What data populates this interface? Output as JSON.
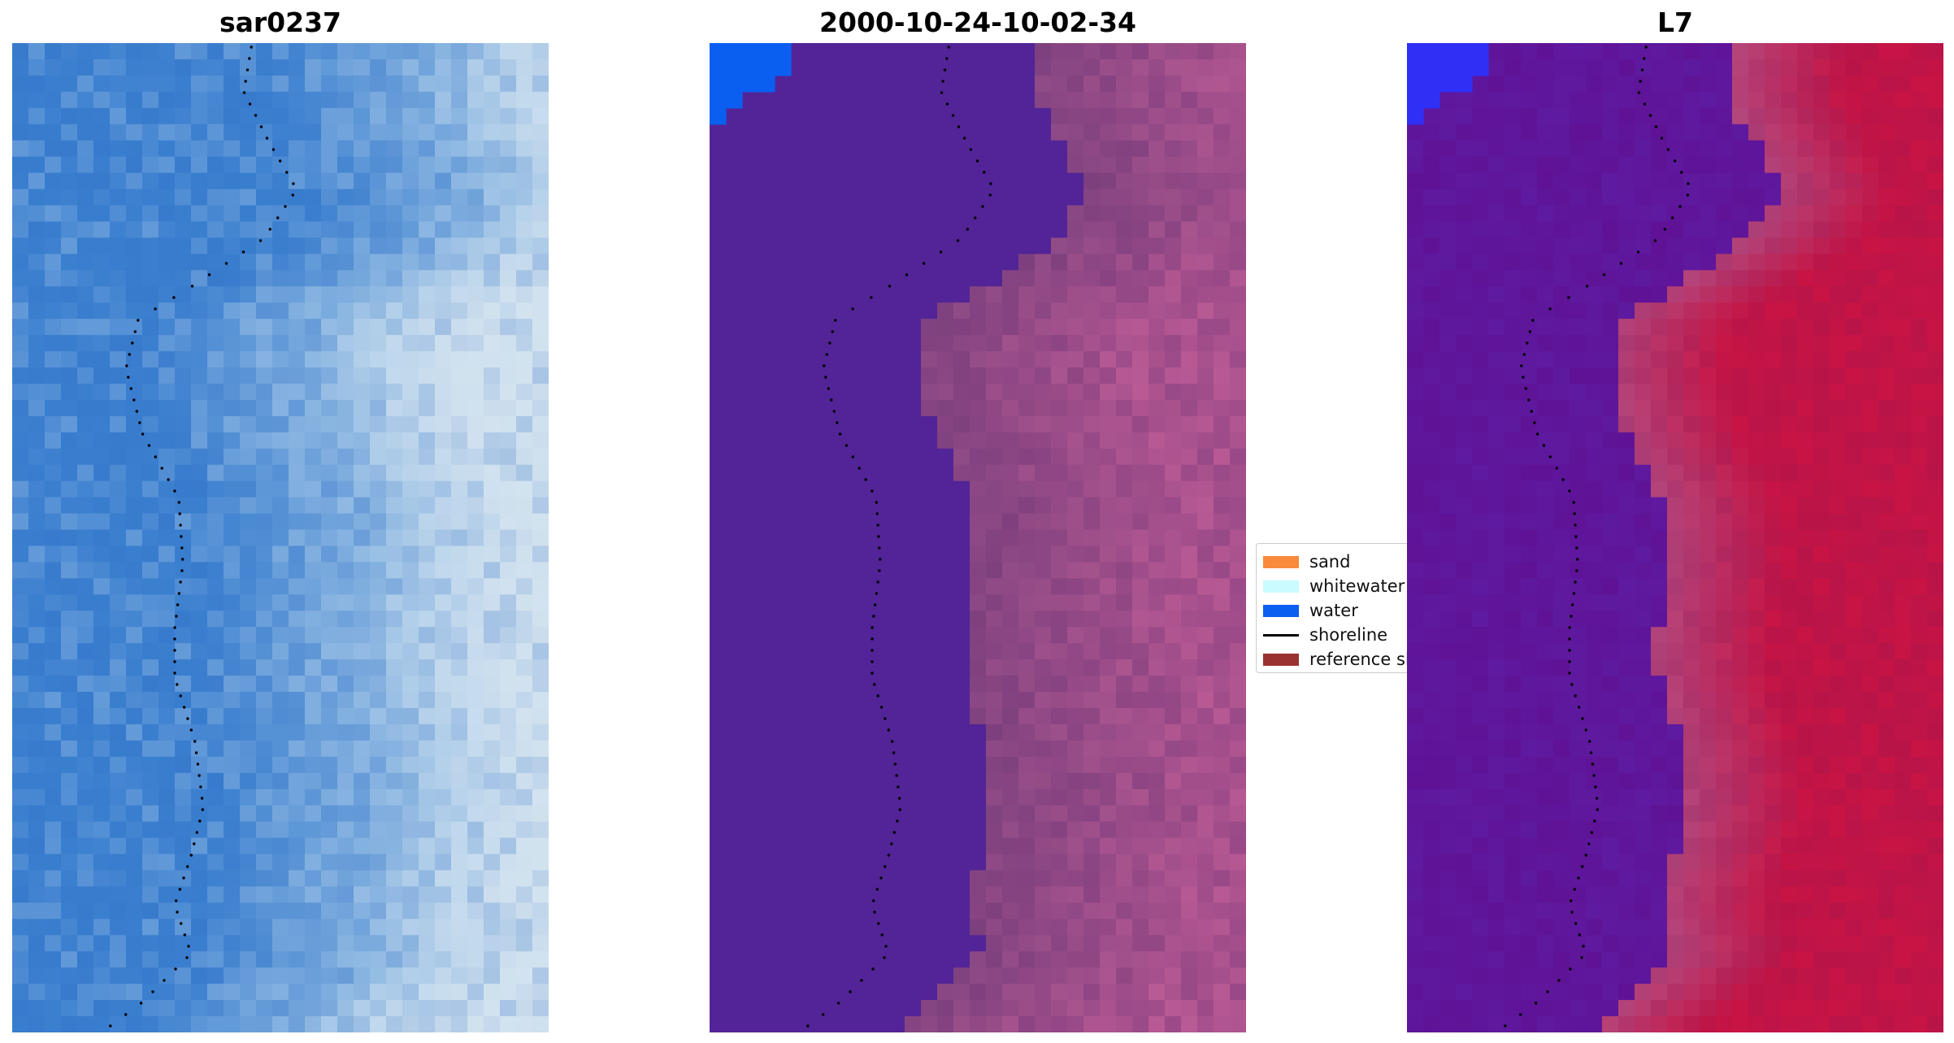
{
  "panels": [
    {
      "title": "sar0237",
      "image": "rgb-composite",
      "base_color": "#3b7fcf",
      "shore_color": "#9fc4e6",
      "land_color": "#e4ecf2"
    },
    {
      "title": "2000-10-24-10-02-34",
      "image": "classified",
      "base_color": "#522497",
      "shore_color": "#8f4b86",
      "land_color": "#b95a94",
      "patch_color": "#0a5ff0"
    },
    {
      "title": "L7",
      "image": "index",
      "base_color": "#5e1aa0",
      "shore_color": "#b5477c",
      "land_color": "#c81444",
      "patch_color": "#2f2ff6"
    }
  ],
  "legend": {
    "items": [
      {
        "label": "sand",
        "color": "#f98a3b",
        "kind": "patch"
      },
      {
        "label": "whitewater",
        "color": "#c9fbff",
        "kind": "patch"
      },
      {
        "label": "water",
        "color": "#0a5ff0",
        "kind": "patch"
      },
      {
        "label": "shoreline",
        "color": "#000000",
        "kind": "line"
      },
      {
        "label": "reference sl",
        "color": "#9b3232",
        "kind": "patch"
      }
    ]
  }
}
